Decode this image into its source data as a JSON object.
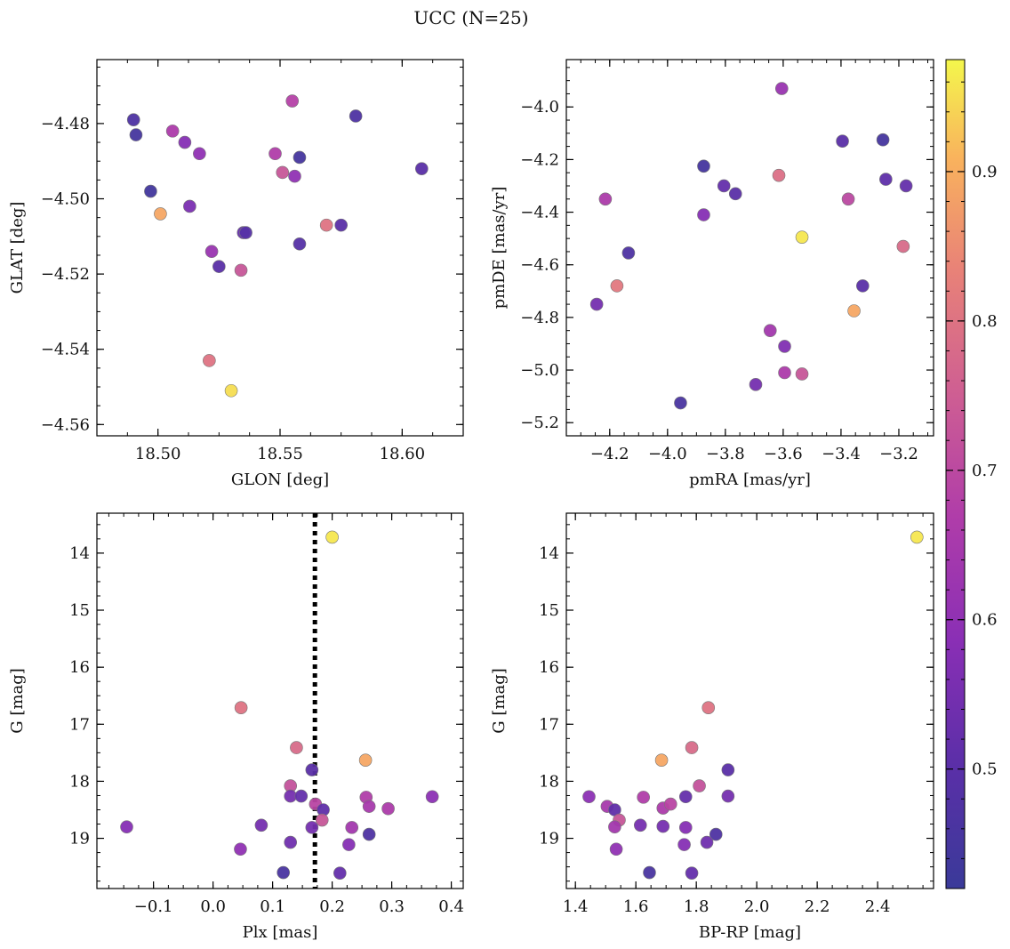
{
  "title": "UCC (N=25)",
  "colorbar": {
    "range": [
      0.42,
      0.975
    ],
    "ticks": [
      0.5,
      0.6,
      0.7,
      0.8,
      0.9
    ],
    "tick_labels": [
      "0.5",
      "0.6",
      "0.7",
      "0.8",
      "0.9"
    ]
  },
  "chart_data": [
    {
      "type": "scatter",
      "xlabel": "GLON [deg]",
      "ylabel": "GLAT [deg]",
      "xlim": [
        18.475,
        18.625
      ],
      "ylim": [
        -4.563,
        -4.463
      ],
      "xticks": [
        18.5,
        18.55,
        18.6
      ],
      "xtick_labels": [
        "18.50",
        "18.55",
        "18.60"
      ],
      "yticks": [
        -4.48,
        -4.5,
        -4.52,
        -4.54,
        -4.56
      ],
      "ytick_labels": [
        "−4.48",
        "−4.50",
        "−4.52",
        "−4.54",
        "−4.56"
      ],
      "points": [
        {
          "x": 18.49,
          "y": -4.479,
          "c": 0.47
        },
        {
          "x": 18.491,
          "y": -4.483,
          "c": 0.45
        },
        {
          "x": 18.506,
          "y": -4.482,
          "c": 0.66
        },
        {
          "x": 18.511,
          "y": -4.485,
          "c": 0.58
        },
        {
          "x": 18.517,
          "y": -4.488,
          "c": 0.6
        },
        {
          "x": 18.497,
          "y": -4.498,
          "c": 0.44
        },
        {
          "x": 18.501,
          "y": -4.504,
          "c": 0.89
        },
        {
          "x": 18.513,
          "y": -4.502,
          "c": 0.56
        },
        {
          "x": 18.555,
          "y": -4.474,
          "c": 0.68
        },
        {
          "x": 18.548,
          "y": -4.488,
          "c": 0.67
        },
        {
          "x": 18.551,
          "y": -4.493,
          "c": 0.73
        },
        {
          "x": 18.556,
          "y": -4.494,
          "c": 0.6
        },
        {
          "x": 18.558,
          "y": -4.489,
          "c": 0.45
        },
        {
          "x": 18.581,
          "y": -4.478,
          "c": 0.47
        },
        {
          "x": 18.608,
          "y": -4.492,
          "c": 0.5
        },
        {
          "x": 18.522,
          "y": -4.514,
          "c": 0.62
        },
        {
          "x": 18.525,
          "y": -4.518,
          "c": 0.5
        },
        {
          "x": 18.535,
          "y": -4.509,
          "c": 0.52
        },
        {
          "x": 18.536,
          "y": -4.509,
          "c": 0.49
        },
        {
          "x": 18.534,
          "y": -4.519,
          "c": 0.73
        },
        {
          "x": 18.558,
          "y": -4.512,
          "c": 0.49
        },
        {
          "x": 18.569,
          "y": -4.507,
          "c": 0.8
        },
        {
          "x": 18.575,
          "y": -4.507,
          "c": 0.5
        },
        {
          "x": 18.521,
          "y": -4.543,
          "c": 0.8
        },
        {
          "x": 18.53,
          "y": -4.551,
          "c": 0.95
        }
      ]
    },
    {
      "type": "scatter",
      "xlabel": "pmRA [mas/yr]",
      "ylabel": "pmDE [mas/yr]",
      "xlim": [
        -4.35,
        -3.08
      ],
      "ylim": [
        -5.25,
        -3.82
      ],
      "xticks": [
        -4.2,
        -4.0,
        -3.8,
        -3.6,
        -3.4,
        -3.2
      ],
      "xtick_labels": [
        "−4.2",
        "−4.0",
        "−3.8",
        "−3.6",
        "−3.4",
        "−3.2"
      ],
      "yticks": [
        -4.0,
        -4.2,
        -4.4,
        -4.6,
        -4.8,
        -5.0,
        -5.2
      ],
      "ytick_labels": [
        "−4.0",
        "−4.2",
        "−4.4",
        "−4.6",
        "−4.8",
        "−5.0",
        "−5.2"
      ],
      "points": [
        {
          "x": -3.605,
          "y": -3.93,
          "c": 0.62
        },
        {
          "x": -3.395,
          "y": -4.13,
          "c": 0.5
        },
        {
          "x": -3.255,
          "y": -4.125,
          "c": 0.45
        },
        {
          "x": -3.875,
          "y": -4.225,
          "c": 0.45
        },
        {
          "x": -3.615,
          "y": -4.26,
          "c": 0.79
        },
        {
          "x": -3.245,
          "y": -4.275,
          "c": 0.51
        },
        {
          "x": -3.175,
          "y": -4.3,
          "c": 0.52
        },
        {
          "x": -3.805,
          "y": -4.3,
          "c": 0.52
        },
        {
          "x": -3.765,
          "y": -4.33,
          "c": 0.5
        },
        {
          "x": -3.375,
          "y": -4.35,
          "c": 0.7
        },
        {
          "x": -4.215,
          "y": -4.35,
          "c": 0.66
        },
        {
          "x": -3.875,
          "y": -4.41,
          "c": 0.58
        },
        {
          "x": -3.535,
          "y": -4.495,
          "c": 0.96
        },
        {
          "x": -3.185,
          "y": -4.53,
          "c": 0.78
        },
        {
          "x": -4.135,
          "y": -4.555,
          "c": 0.47
        },
        {
          "x": -4.175,
          "y": -4.68,
          "c": 0.81
        },
        {
          "x": -3.325,
          "y": -4.68,
          "c": 0.5
        },
        {
          "x": -4.245,
          "y": -4.75,
          "c": 0.55
        },
        {
          "x": -3.355,
          "y": -4.775,
          "c": 0.89
        },
        {
          "x": -3.645,
          "y": -4.85,
          "c": 0.64
        },
        {
          "x": -3.595,
          "y": -4.91,
          "c": 0.57
        },
        {
          "x": -3.595,
          "y": -5.01,
          "c": 0.66
        },
        {
          "x": -3.535,
          "y": -5.015,
          "c": 0.73
        },
        {
          "x": -3.695,
          "y": -5.055,
          "c": 0.55
        },
        {
          "x": -3.955,
          "y": -5.125,
          "c": 0.46
        }
      ]
    },
    {
      "type": "scatter",
      "xlabel": "Plx [mas]",
      "ylabel": "G [mag]",
      "xlim": [
        -0.195,
        0.42
      ],
      "ylim": [
        19.88,
        13.3
      ],
      "y_inverted": true,
      "xticks": [
        -0.1,
        0.0,
        0.1,
        0.2,
        0.3,
        0.4
      ],
      "xtick_labels": [
        "−0.1",
        "0.0",
        "0.1",
        "0.2",
        "0.3",
        "0.4"
      ],
      "yticks": [
        14,
        15,
        16,
        17,
        18,
        19
      ],
      "ytick_labels": [
        "14",
        "15",
        "16",
        "17",
        "18",
        "19"
      ],
      "vline": {
        "x": 0.171,
        "style": "dotted",
        "color": "#000000"
      },
      "points": [
        {
          "x": 0.2,
          "y": 13.72,
          "c": 0.96
        },
        {
          "x": 0.047,
          "y": 16.71,
          "c": 0.8
        },
        {
          "x": 0.14,
          "y": 17.41,
          "c": 0.78
        },
        {
          "x": 0.256,
          "y": 17.63,
          "c": 0.89
        },
        {
          "x": 0.166,
          "y": 17.8,
          "c": 0.5
        },
        {
          "x": 0.13,
          "y": 18.08,
          "c": 0.72
        },
        {
          "x": 0.13,
          "y": 18.26,
          "c": 0.55
        },
        {
          "x": 0.148,
          "y": 18.26,
          "c": 0.52
        },
        {
          "x": 0.257,
          "y": 18.28,
          "c": 0.67
        },
        {
          "x": 0.368,
          "y": 18.27,
          "c": 0.59
        },
        {
          "x": 0.172,
          "y": 18.4,
          "c": 0.69
        },
        {
          "x": 0.262,
          "y": 18.44,
          "c": 0.65
        },
        {
          "x": 0.185,
          "y": 18.5,
          "c": 0.51
        },
        {
          "x": 0.294,
          "y": 18.48,
          "c": 0.66
        },
        {
          "x": 0.183,
          "y": 18.68,
          "c": 0.73
        },
        {
          "x": -0.145,
          "y": 18.8,
          "c": 0.58
        },
        {
          "x": 0.081,
          "y": 18.77,
          "c": 0.55
        },
        {
          "x": 0.166,
          "y": 18.81,
          "c": 0.55
        },
        {
          "x": 0.233,
          "y": 18.81,
          "c": 0.64
        },
        {
          "x": 0.262,
          "y": 18.93,
          "c": 0.47
        },
        {
          "x": 0.13,
          "y": 19.07,
          "c": 0.54
        },
        {
          "x": 0.228,
          "y": 19.11,
          "c": 0.58
        },
        {
          "x": 0.046,
          "y": 19.19,
          "c": 0.6
        },
        {
          "x": 0.118,
          "y": 19.6,
          "c": 0.46
        },
        {
          "x": 0.213,
          "y": 19.61,
          "c": 0.52
        }
      ]
    },
    {
      "type": "scatter",
      "xlabel": "BP-RP [mag]",
      "ylabel": "G [mag]",
      "xlim": [
        1.37,
        2.585
      ],
      "ylim": [
        19.88,
        13.3
      ],
      "y_inverted": true,
      "xticks": [
        1.4,
        1.6,
        1.8,
        2.0,
        2.2,
        2.4
      ],
      "xtick_labels": [
        "1.4",
        "1.6",
        "1.8",
        "2.0",
        "2.2",
        "2.4"
      ],
      "yticks": [
        14,
        15,
        16,
        17,
        18,
        19
      ],
      "ytick_labels": [
        "14",
        "15",
        "16",
        "17",
        "18",
        "19"
      ],
      "points": [
        {
          "x": 2.53,
          "y": 13.72,
          "c": 0.96
        },
        {
          "x": 1.84,
          "y": 16.71,
          "c": 0.8
        },
        {
          "x": 1.785,
          "y": 17.41,
          "c": 0.78
        },
        {
          "x": 1.685,
          "y": 17.63,
          "c": 0.89
        },
        {
          "x": 1.905,
          "y": 17.8,
          "c": 0.5
        },
        {
          "x": 1.81,
          "y": 18.08,
          "c": 0.72
        },
        {
          "x": 1.445,
          "y": 18.27,
          "c": 0.59
        },
        {
          "x": 1.625,
          "y": 18.28,
          "c": 0.67
        },
        {
          "x": 1.765,
          "y": 18.27,
          "c": 0.52
        },
        {
          "x": 1.905,
          "y": 18.26,
          "c": 0.55
        },
        {
          "x": 1.505,
          "y": 18.44,
          "c": 0.65
        },
        {
          "x": 1.69,
          "y": 18.47,
          "c": 0.66
        },
        {
          "x": 1.715,
          "y": 18.4,
          "c": 0.69
        },
        {
          "x": 1.53,
          "y": 18.5,
          "c": 0.51
        },
        {
          "x": 1.545,
          "y": 18.68,
          "c": 0.73
        },
        {
          "x": 1.53,
          "y": 18.8,
          "c": 0.64
        },
        {
          "x": 1.615,
          "y": 18.77,
          "c": 0.55
        },
        {
          "x": 1.69,
          "y": 18.79,
          "c": 0.55
        },
        {
          "x": 1.765,
          "y": 18.81,
          "c": 0.58
        },
        {
          "x": 1.865,
          "y": 18.93,
          "c": 0.47
        },
        {
          "x": 1.76,
          "y": 19.11,
          "c": 0.58
        },
        {
          "x": 1.835,
          "y": 19.07,
          "c": 0.54
        },
        {
          "x": 1.535,
          "y": 19.19,
          "c": 0.6
        },
        {
          "x": 1.645,
          "y": 19.6,
          "c": 0.46
        },
        {
          "x": 1.785,
          "y": 19.61,
          "c": 0.52
        }
      ]
    }
  ]
}
